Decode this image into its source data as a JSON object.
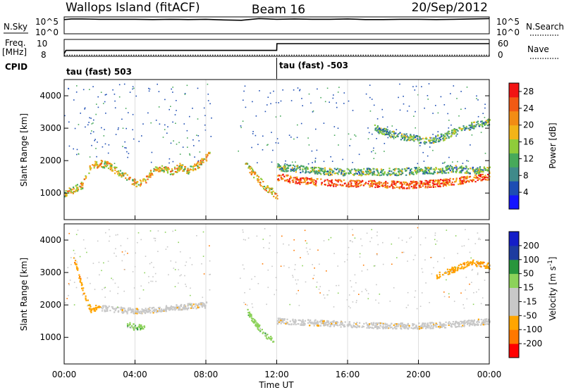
{
  "header": {
    "station": "Wallops Island (fitACF)",
    "beam": "Beam 16",
    "date": "20/Sep/2012"
  },
  "colors": {
    "power": [
      "#1414ff",
      "#1d4db3",
      "#3f8a8a",
      "#47a95a",
      "#8fcc3a",
      "#f2b418",
      "#f28c14",
      "#f25a14",
      "#f21414"
    ],
    "velocity": [
      "#ff0000",
      "#ff7800",
      "#ffa500",
      "#c8c8c8",
      "#c8c8c8",
      "#8cd25a",
      "#28963c",
      "#1e3ca0",
      "#141ec8"
    ]
  },
  "chart_data": [
    {
      "type": "line",
      "panel": "noise",
      "left_label": "N.Sky",
      "right_label": "N.Search",
      "left_ticks": [
        "10^5",
        "10^0"
      ],
      "right_ticks": [
        "10^5",
        "10^0"
      ],
      "ylim_log10": [
        0,
        5
      ],
      "series": [
        {
          "x_hours": [
            0,
            0.4,
            1,
            2,
            3,
            4,
            5,
            6,
            7,
            8,
            9,
            10,
            11,
            12,
            13,
            14,
            15,
            16,
            17,
            18,
            19,
            20,
            21,
            22,
            23,
            24
          ],
          "y_log10": [
            4.2,
            4.4,
            4.4,
            4.3,
            4.3,
            4.3,
            4.2,
            4.3,
            4.2,
            4.3,
            4.1,
            4.0,
            4.5,
            4.3,
            4.4,
            4.3,
            4.3,
            4.4,
            4.2,
            4.2,
            4.3,
            4.3,
            4.2,
            4.3,
            4.4,
            4.5
          ]
        }
      ]
    },
    {
      "type": "line",
      "panel": "frequency",
      "left_label": "Freq.",
      "left_unit": "[MHz]",
      "right_label": "Nave",
      "left_ticks": [
        "10",
        "8"
      ],
      "right_ticks": [
        "60",
        "0"
      ],
      "ylim_left": [
        8,
        10
      ],
      "ylim_right": [
        0,
        60
      ],
      "series": [
        {
          "x_hours": [
            0,
            0.1,
            12,
            12.01,
            24
          ],
          "y": [
            8.3,
            8.7,
            8.7,
            9.5,
            9.5
          ]
        },
        {
          "x_hours": [
            0,
            24
          ],
          "y_right": [
            4,
            4
          ]
        }
      ]
    },
    {
      "type": "table",
      "panel": "cpid",
      "label": "CPID",
      "segments": [
        {
          "start_hour": 0,
          "text": "tau (fast) 503"
        },
        {
          "start_hour": 12,
          "text": "tau (fast) -503"
        }
      ]
    },
    {
      "type": "heatmap",
      "panel": "power",
      "ylabel": "Slant Range [km]",
      "ylim": [
        180,
        4500
      ],
      "yticks": [
        1000,
        2000,
        3000,
        4000
      ],
      "xlim_hours": [
        0,
        24
      ],
      "colorbar_label": "Power [dB]",
      "colorbar_ticks": [
        4,
        8,
        12,
        16,
        20,
        24,
        28
      ],
      "colorbar_range": [
        0,
        30
      ],
      "features": [
        {
          "x_hours": [
            0,
            0.5,
            1,
            1.5,
            2,
            2.5,
            3,
            3.5,
            4,
            4.5,
            5,
            5.5,
            6,
            6.5,
            7,
            7.5,
            8,
            8.2
          ],
          "y_km": [
            1000,
            1100,
            1250,
            1850,
            1900,
            1850,
            1650,
            1500,
            1300,
            1350,
            1700,
            1750,
            1650,
            1800,
            1700,
            1850,
            2100,
            2200
          ],
          "power_db": 20
        },
        {
          "x_hours": [
            10.2,
            10.8,
            11.3,
            11.8,
            12
          ],
          "y_km": [
            1900,
            1500,
            1200,
            1000,
            900
          ],
          "power_db": 18
        },
        {
          "x_hours": [
            12,
            13,
            14,
            15,
            16,
            17,
            18,
            19,
            20,
            21,
            22,
            23,
            24
          ],
          "y_km": [
            1500,
            1400,
            1350,
            1300,
            1300,
            1280,
            1270,
            1250,
            1260,
            1300,
            1350,
            1450,
            1500
          ],
          "power_db": 28
        },
        {
          "x_hours": [
            12,
            13,
            14,
            15,
            16,
            17,
            18,
            19,
            20,
            21,
            22,
            23,
            24
          ],
          "y_km": [
            1800,
            1750,
            1700,
            1650,
            1650,
            1650,
            1650,
            1650,
            1700,
            1700,
            1750,
            1700,
            1700
          ],
          "power_db": 12
        },
        {
          "x_hours": [
            17.5,
            18.5,
            19.5,
            20.5,
            21.5,
            22.5,
            23.2,
            24
          ],
          "y_km": [
            3000,
            2800,
            2700,
            2600,
            2750,
            3000,
            3100,
            3200
          ],
          "power_db": 12
        }
      ]
    },
    {
      "type": "heatmap",
      "panel": "velocity",
      "ylabel": "Slant Range [km]",
      "ylim": [
        180,
        4500
      ],
      "yticks": [
        1000,
        2000,
        3000,
        4000
      ],
      "xlim_hours": [
        0,
        24
      ],
      "xticks": [
        "00:00",
        "04:00",
        "08:00",
        "12:00",
        "16:00",
        "20:00",
        "00:00"
      ],
      "xlabel": "Time UT",
      "colorbar_label": "Velocity [m s",
      "colorbar_unit_exp": "-1",
      "colorbar_label_close": "]",
      "colorbar_ticks": [
        -200,
        -100,
        -50,
        -15,
        15,
        50,
        100,
        200
      ],
      "features": [
        {
          "x_hours": [
            2,
            3,
            4,
            5,
            6,
            7,
            8
          ],
          "y_km": [
            1900,
            1850,
            1800,
            1850,
            1900,
            1950,
            2000
          ],
          "velocity": 0
        },
        {
          "x_hours": [
            12,
            14,
            16,
            18,
            20,
            22,
            24
          ],
          "y_km": [
            1500,
            1450,
            1400,
            1350,
            1350,
            1400,
            1500
          ],
          "velocity": 0
        },
        {
          "x_hours": [
            0.5,
            1,
            1.5,
            2
          ],
          "y_km": [
            3500,
            2500,
            1800,
            2000
          ],
          "velocity": -80
        },
        {
          "x_hours": [
            3.5,
            4,
            4.5
          ],
          "y_km": [
            1400,
            1300,
            1350
          ],
          "velocity": 40
        },
        {
          "x_hours": [
            10.3,
            10.8,
            11.3,
            11.8
          ],
          "y_km": [
            1800,
            1400,
            1100,
            900
          ],
          "velocity": 40
        },
        {
          "x_hours": [
            21,
            22,
            23,
            24
          ],
          "y_km": [
            2900,
            3100,
            3300,
            3200
          ],
          "velocity": -60
        }
      ]
    }
  ]
}
